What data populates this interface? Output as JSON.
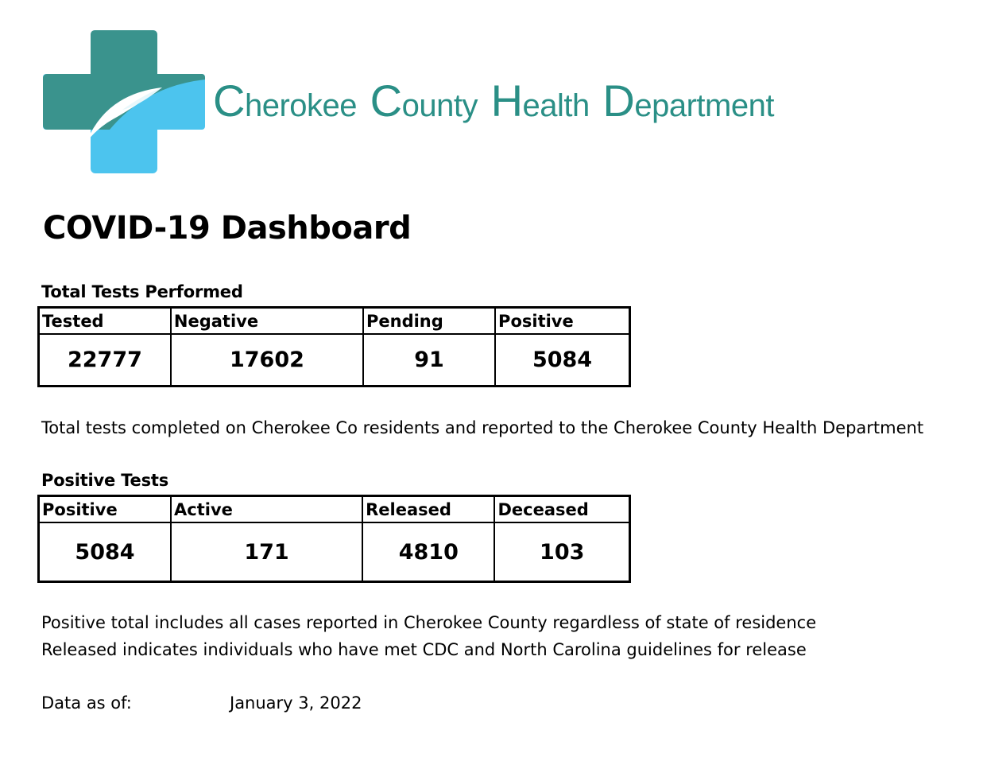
{
  "logo": {
    "org_name_parts": [
      {
        "cap": "C",
        "rest": "herokee"
      },
      {
        "cap": "C",
        "rest": "ounty"
      },
      {
        "cap": "H",
        "rest": "ealth"
      },
      {
        "cap": "D",
        "rest": "epartment"
      }
    ],
    "colors": {
      "teal": "#3a938d",
      "sky": "#4cc4ee",
      "text": "#2a8f86"
    }
  },
  "title": "COVID-19 Dashboard",
  "tests": {
    "label": "Total Tests Performed",
    "headers": [
      "Tested",
      "Negative",
      "Pending",
      "Positive"
    ],
    "values": [
      "22777",
      "17602",
      "91",
      "5084"
    ],
    "note": "Total tests completed on Cherokee Co residents and reported to the Cherokee County Health Department"
  },
  "positive": {
    "label": "Positive Tests",
    "headers": [
      "Positive",
      "Active",
      "Released",
      "Deceased"
    ],
    "values": [
      "5084",
      "171",
      "4810",
      "103"
    ],
    "notes": [
      "Positive total includes all cases reported in Cherokee County regardless of state of residence",
      "Released indicates individuals who have met CDC and North Carolina guidelines for release"
    ]
  },
  "data_as_of": {
    "label": "Data as of:",
    "date": "January 3, 2022"
  }
}
